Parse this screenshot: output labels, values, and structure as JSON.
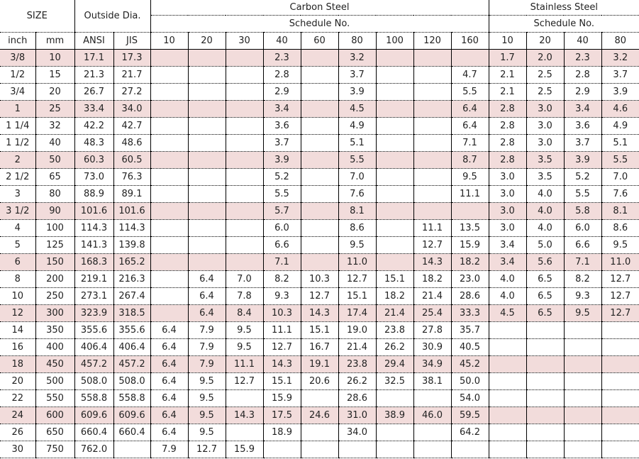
{
  "header": {
    "size": "SIZE",
    "outside_dia": "Outside Dia.",
    "carbon_steel": "Carbon Steel",
    "carbon_schedule": "Schedule No.",
    "stainless_steel": "Stainless Steel",
    "stainless_schedule": "Schedule No."
  },
  "columns": [
    "inch",
    "mm",
    "ANSI",
    "JIS",
    "10",
    "20",
    "30",
    "40",
    "60",
    "80",
    "100",
    "120",
    "160",
    "10",
    "20",
    "40",
    "80"
  ],
  "table": {
    "rows": [
      [
        "3/8",
        "10",
        "17.1",
        "17.3",
        null,
        null,
        null,
        "2.3",
        null,
        "3.2",
        null,
        null,
        null,
        "1.7",
        "2.0",
        "2.3",
        "3.2"
      ],
      [
        "1/2",
        "15",
        "21.3",
        "21.7",
        null,
        null,
        null,
        "2.8",
        null,
        "3.7",
        null,
        null,
        "4.7",
        "2.1",
        "2.5",
        "2.8",
        "3.7"
      ],
      [
        "3/4",
        "20",
        "26.7",
        "27.2",
        null,
        null,
        null,
        "2.9",
        null,
        "3.9",
        null,
        null,
        "5.5",
        "2.1",
        "2.5",
        "2.9",
        "3.9"
      ],
      [
        "1",
        "25",
        "33.4",
        "34.0",
        null,
        null,
        null,
        "3.4",
        null,
        "4.5",
        null,
        null,
        "6.4",
        "2.8",
        "3.0",
        "3.4",
        "4.6"
      ],
      [
        "1 1/4",
        "32",
        "42.2",
        "42.7",
        null,
        null,
        null,
        "3.6",
        null,
        "4.9",
        null,
        null,
        "6.4",
        "2.8",
        "3.0",
        "3.6",
        "4.9"
      ],
      [
        "1 1/2",
        "40",
        "48.3",
        "48.6",
        null,
        null,
        null,
        "3.7",
        null,
        "5.1",
        null,
        null,
        "7.1",
        "2.8",
        "3.0",
        "3.7",
        "5.1"
      ],
      [
        "2",
        "50",
        "60.3",
        "60.5",
        null,
        null,
        null,
        "3.9",
        null,
        "5.5",
        null,
        null,
        "8.7",
        "2.8",
        "3.5",
        "3.9",
        "5.5"
      ],
      [
        "2 1/2",
        "65",
        "73.0",
        "76.3",
        null,
        null,
        null,
        "5.2",
        null,
        "7.0",
        null,
        null,
        "9.5",
        "3.0",
        "3.5",
        "5.2",
        "7.0"
      ],
      [
        "3",
        "80",
        "88.9",
        "89.1",
        null,
        null,
        null,
        "5.5",
        null,
        "7.6",
        null,
        null,
        "11.1",
        "3.0",
        "4.0",
        "5.5",
        "7.6"
      ],
      [
        "3 1/2",
        "90",
        "101.6",
        "101.6",
        null,
        null,
        null,
        "5.7",
        null,
        "8.1",
        null,
        null,
        null,
        "3.0",
        "4.0",
        "5.8",
        "8.1"
      ],
      [
        "4",
        "100",
        "114.3",
        "114.3",
        null,
        null,
        null,
        "6.0",
        null,
        "8.6",
        null,
        "11.1",
        "13.5",
        "3.0",
        "4.0",
        "6.0",
        "8.6"
      ],
      [
        "5",
        "125",
        "141.3",
        "139.8",
        null,
        null,
        null,
        "6.6",
        null,
        "9.5",
        null,
        "12.7",
        "15.9",
        "3.4",
        "5.0",
        "6.6",
        "9.5"
      ],
      [
        "6",
        "150",
        "168.3",
        "165.2",
        null,
        null,
        null,
        "7.1",
        null,
        "11.0",
        null,
        "14.3",
        "18.2",
        "3.4",
        "5.6",
        "7.1",
        "11.0"
      ],
      [
        "8",
        "200",
        "219.1",
        "216.3",
        null,
        "6.4",
        "7.0",
        "8.2",
        "10.3",
        "12.7",
        "15.1",
        "18.2",
        "23.0",
        "4.0",
        "6.5",
        "8.2",
        "12.7"
      ],
      [
        "10",
        "250",
        "273.1",
        "267.4",
        null,
        "6.4",
        "7.8",
        "9.3",
        "12.7",
        "15.1",
        "18.2",
        "21.4",
        "28.6",
        "4.0",
        "6.5",
        "9.3",
        "12.7"
      ],
      [
        "12",
        "300",
        "323.9",
        "318.5",
        null,
        "6.4",
        "8.4",
        "10.3",
        "14.3",
        "17.4",
        "21.4",
        "25.4",
        "33.3",
        "4.5",
        "6.5",
        "9.5",
        "12.7"
      ],
      [
        "14",
        "350",
        "355.6",
        "355.6",
        "6.4",
        "7.9",
        "9.5",
        "11.1",
        "15.1",
        "19.0",
        "23.8",
        "27.8",
        "35.7",
        null,
        null,
        null,
        null
      ],
      [
        "16",
        "400",
        "406.4",
        "406.4",
        "6.4",
        "7.9",
        "9.5",
        "12.7",
        "16.7",
        "21.4",
        "26.2",
        "30.9",
        "40.5",
        null,
        null,
        null,
        null
      ],
      [
        "18",
        "450",
        "457.2",
        "457.2",
        "6.4",
        "7.9",
        "11.1",
        "14.3",
        "19.1",
        "23.8",
        "29.4",
        "34.9",
        "45.2",
        null,
        null,
        null,
        null
      ],
      [
        "20",
        "500",
        "508.0",
        "508.0",
        "6.4",
        "9.5",
        "12.7",
        "15.1",
        "20.6",
        "26.2",
        "32.5",
        "38.1",
        "50.0",
        null,
        null,
        null,
        null
      ],
      [
        "22",
        "550",
        "558.8",
        "558.8",
        "6.4",
        "9.5",
        null,
        "15.9",
        null,
        "28.6",
        null,
        null,
        "54.0",
        null,
        null,
        null,
        null
      ],
      [
        "24",
        "600",
        "609.6",
        "609.6",
        "6.4",
        "9.5",
        "14.3",
        "17.5",
        "24.6",
        "31.0",
        "38.9",
        "46.0",
        "59.5",
        null,
        null,
        null,
        null
      ],
      [
        "26",
        "650",
        "660.4",
        "660.4",
        "6.4",
        "9.5",
        null,
        "18.9",
        null,
        "34.0",
        null,
        null,
        "64.2",
        null,
        null,
        null,
        null
      ],
      [
        "30",
        "750",
        "762.0",
        null,
        "7.9",
        "12.7",
        "15.9",
        null,
        null,
        null,
        null,
        null,
        null,
        null,
        null,
        null,
        null
      ]
    ]
  }
}
